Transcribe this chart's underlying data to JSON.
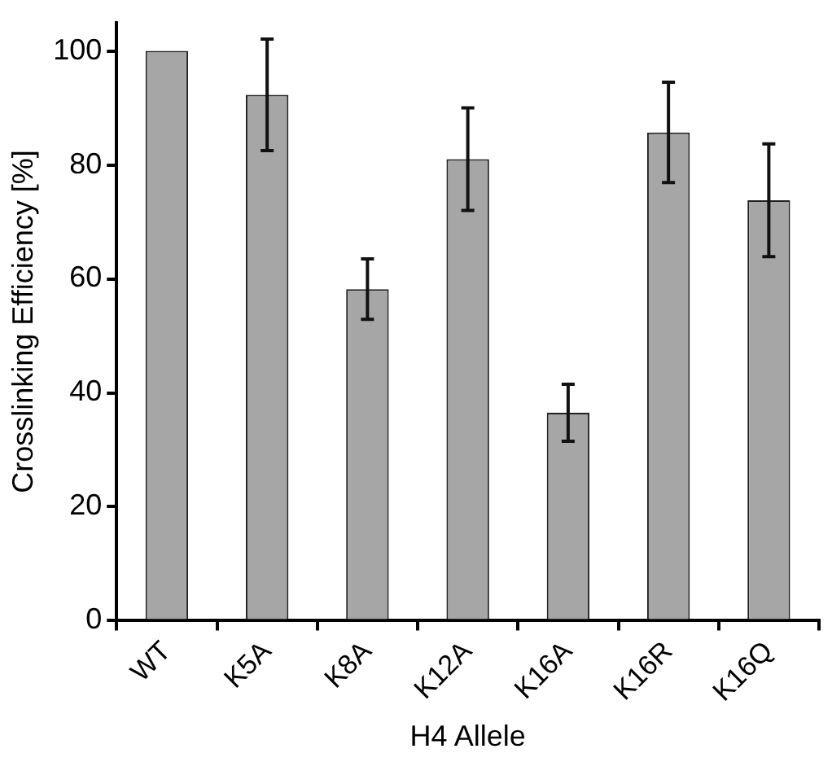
{
  "chart_data": {
    "type": "bar",
    "xlabel": "H4 Allele",
    "ylabel": "Crosslinking Efficiency [%]",
    "categories": [
      "WT",
      "K5A",
      "K8A",
      "K12A",
      "K16A",
      "K16R",
      "K16Q"
    ],
    "values": [
      100,
      92.3,
      58.2,
      81,
      36.5,
      85.7,
      73.8
    ],
    "errors": [
      null,
      9.8,
      5.3,
      9,
      5,
      8.8,
      9.9
    ],
    "color": "#a6a6a6",
    "ylim": [
      0,
      105
    ],
    "yticks": [
      0,
      20,
      40,
      60,
      80,
      100
    ],
    "grid": false,
    "legend": false
  }
}
